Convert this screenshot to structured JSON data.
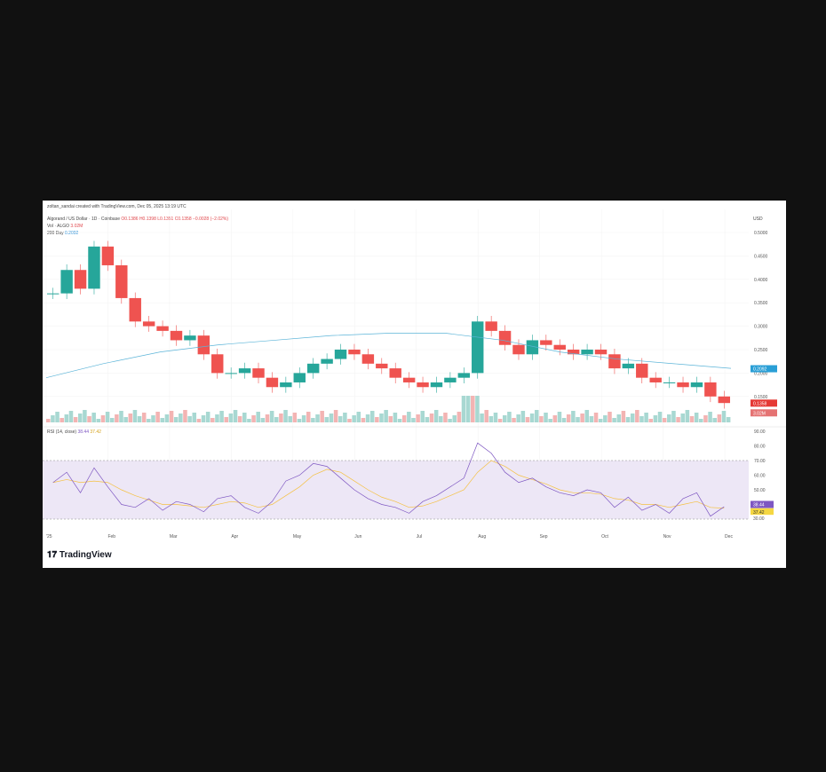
{
  "header": {
    "attribution": "zoltan_sandai created with TradingView.com, Dec 05, 2025 13:19 UTC",
    "symbol": "Algorand / US Dollar · 1D · Coinbase",
    "ohlc": "O0.1386 H0.1398 L0.1351 C0.1358 −0.0028 (−2.02%)",
    "vol_label": "Vol · ALGO",
    "vol_value": "3.02M",
    "ma_label": "200 Day",
    "ma_value": "0.2092"
  },
  "rsi_header": {
    "label": "RSI (14, close)",
    "value1": "38.44",
    "value2": "37.42"
  },
  "brand": "TradingView",
  "colors": {
    "up": "#26a69a",
    "down": "#ef5350",
    "ma": "#5bb4d8",
    "rsi": "#7e57c2",
    "rsi_ma": "#f5c142"
  },
  "chart_data": [
    {
      "type": "candlestick",
      "title": "Algorand / US Dollar · 1D · Coinbase",
      "currency": "USD",
      "x_ticks": [
        "'25",
        "Feb",
        "Mar",
        "Apr",
        "May",
        "Jun",
        "Jul",
        "Aug",
        "Sep",
        "Oct",
        "Nov",
        "Dec"
      ],
      "y_ticks": [
        "0.5000",
        "0.4500",
        "0.4000",
        "0.3500",
        "0.3000",
        "0.2500",
        "0.2000",
        "0.1500"
      ],
      "ylim": [
        0.13,
        0.52
      ],
      "weekly_close": [
        0.37,
        0.42,
        0.38,
        0.47,
        0.43,
        0.36,
        0.31,
        0.3,
        0.29,
        0.27,
        0.28,
        0.24,
        0.2,
        0.2,
        0.21,
        0.19,
        0.17,
        0.18,
        0.2,
        0.22,
        0.23,
        0.25,
        0.24,
        0.22,
        0.21,
        0.19,
        0.18,
        0.17,
        0.18,
        0.19,
        0.2,
        0.31,
        0.29,
        0.26,
        0.24,
        0.27,
        0.26,
        0.25,
        0.24,
        0.25,
        0.24,
        0.21,
        0.22,
        0.19,
        0.18,
        0.18,
        0.17,
        0.18,
        0.15,
        0.136
      ],
      "ma200": [
        0.19,
        0.22,
        0.245,
        0.26,
        0.27,
        0.28,
        0.285,
        0.285,
        0.27,
        0.245,
        0.23,
        0.22,
        0.21
      ],
      "current_price_label": "0.1358",
      "ma_label": "0.2092",
      "volume_label": "3.02M"
    },
    {
      "type": "line",
      "title": "RSI (14, close)",
      "y_ticks": [
        "90.00",
        "80.00",
        "70.00",
        "60.00",
        "50.00",
        "30.00"
      ],
      "ylim": [
        30,
        90
      ],
      "band": [
        30,
        70
      ],
      "rsi": [
        55,
        62,
        48,
        65,
        52,
        40,
        38,
        44,
        36,
        42,
        40,
        35,
        44,
        46,
        38,
        34,
        42,
        56,
        60,
        68,
        66,
        58,
        50,
        44,
        40,
        38,
        34,
        42,
        46,
        52,
        58,
        82,
        75,
        62,
        55,
        58,
        52,
        48,
        46,
        50,
        48,
        38,
        45,
        36,
        40,
        34,
        44,
        48,
        32,
        38.44
      ],
      "rsi_ma": [
        55,
        57,
        55,
        56,
        55,
        50,
        46,
        43,
        40,
        40,
        39,
        38,
        40,
        42,
        41,
        38,
        40,
        46,
        52,
        60,
        64,
        62,
        56,
        50,
        45,
        42,
        38,
        39,
        42,
        46,
        50,
        62,
        70,
        66,
        60,
        57,
        54,
        50,
        48,
        48,
        47,
        44,
        43,
        40,
        40,
        38,
        40,
        42,
        38,
        37.42
      ],
      "labels": [
        "38.44",
        "37.42",
        "30.00"
      ]
    }
  ]
}
